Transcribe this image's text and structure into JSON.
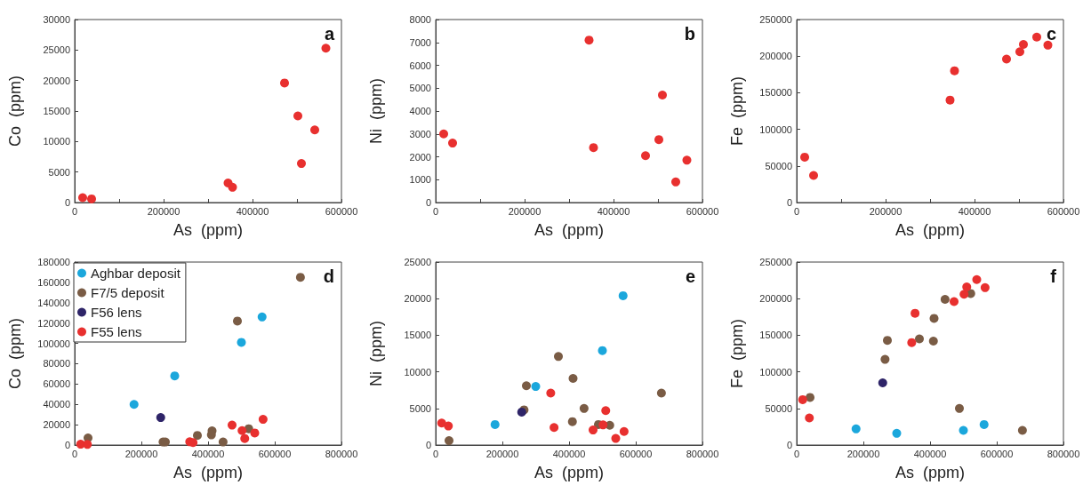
{
  "chart_data": [
    {
      "type": "scatter",
      "xlabel": "As  (ppm)",
      "ylabel": "Co  (ppm)",
      "annotations": [
        "a"
      ],
      "marker": "circle",
      "legend": false,
      "xlim": [
        0,
        600000
      ],
      "xticks": [
        0,
        {
          "value": 100000,
          "label": null
        },
        200000,
        {
          "value": 300000,
          "label": null
        },
        400000,
        {
          "value": 500000,
          "label": null
        },
        600000
      ],
      "ylim": [
        0,
        30000
      ],
      "yticks": [
        0,
        5000,
        10000,
        15000,
        20000,
        25000,
        30000
      ],
      "series": [
        {
          "color": "#e8302f",
          "x": [
            18000,
            38000,
            345000,
            355000,
            472000,
            502000,
            510000,
            540000,
            565000
          ],
          "values": [
            800,
            600,
            3200,
            2500,
            19600,
            14200,
            6400,
            11900,
            25300
          ]
        }
      ]
    },
    {
      "type": "scatter",
      "xlabel": "As  (ppm)",
      "ylabel": "Ni  (ppm)",
      "annotations": [
        "b"
      ],
      "marker": "circle",
      "legend": false,
      "xlim": [
        0,
        600000
      ],
      "xticks": [
        0,
        {
          "value": 100000,
          "label": null
        },
        200000,
        {
          "value": 300000,
          "label": null
        },
        400000,
        {
          "value": 500000,
          "label": null
        },
        600000
      ],
      "ylim": [
        0,
        8000
      ],
      "yticks": [
        0,
        1000,
        2000,
        3000,
        4000,
        5000,
        6000,
        7000,
        8000
      ],
      "series": [
        {
          "color": "#e8302f",
          "x": [
            18000,
            38000,
            345000,
            355000,
            472000,
            502000,
            510000,
            540000,
            565000
          ],
          "values": [
            3000,
            2600,
            7100,
            2400,
            2050,
            2750,
            4700,
            900,
            1850
          ]
        }
      ]
    },
    {
      "type": "scatter",
      "xlabel": "As  (ppm)",
      "ylabel": "Fe  (ppm)",
      "annotations": [
        "c"
      ],
      "marker": "circle",
      "legend": false,
      "xlim": [
        0,
        600000
      ],
      "xticks": [
        0,
        {
          "value": 100000,
          "label": null
        },
        200000,
        {
          "value": 300000,
          "label": null
        },
        400000,
        {
          "value": 500000,
          "label": null
        },
        600000
      ],
      "ylim": [
        0,
        250000
      ],
      "yticks": [
        0,
        50000,
        100000,
        150000,
        200000,
        250000
      ],
      "series": [
        {
          "color": "#e8302f",
          "x": [
            18000,
            38000,
            345000,
            355000,
            472000,
            502000,
            510000,
            540000,
            565000
          ],
          "values": [
            62000,
            37000,
            140000,
            180000,
            196000,
            206000,
            216000,
            226000,
            215000
          ]
        }
      ]
    },
    {
      "type": "scatter",
      "xlabel": "As  (ppm)",
      "ylabel": "Co  (ppm)",
      "annotations": [
        "d"
      ],
      "marker": "circle",
      "legend": "top left",
      "xlim": [
        0,
        800000
      ],
      "xticks": [
        0,
        200000,
        400000,
        600000,
        800000
      ],
      "ylim": [
        0,
        180000
      ],
      "yticks": [
        0,
        20000,
        40000,
        60000,
        80000,
        100000,
        120000,
        140000,
        160000,
        180000
      ],
      "series": [
        {
          "name": "Aghbar deposit",
          "color": "#1ba7dc",
          "x": [
            178000,
            300000,
            500000,
            562000
          ],
          "values": [
            40000,
            68000,
            101000,
            126000
          ]
        },
        {
          "name": "F7/5 deposit",
          "color": "#7a5c45",
          "x": [
            40000,
            265000,
            272000,
            368000,
            412000,
            410000,
            445000,
            488000,
            522000,
            677000
          ],
          "values": [
            7000,
            3000,
            3000,
            9500,
            14000,
            10000,
            3000,
            122000,
            16000,
            165000
          ]
        },
        {
          "name": "F56 lens",
          "color": "#2e2468",
          "x": [
            258000
          ],
          "values": [
            27000
          ]
        },
        {
          "name": "F55 lens",
          "color": "#e8302f",
          "x": [
            18000,
            38000,
            345000,
            355000,
            472000,
            502000,
            510000,
            540000,
            565000
          ],
          "values": [
            800,
            600,
            3200,
            2500,
            19600,
            14200,
            6400,
            11900,
            25300
          ]
        }
      ]
    },
    {
      "type": "scatter",
      "xlabel": "As  (ppm)",
      "ylabel": "Ni  (ppm)",
      "annotations": [
        "e"
      ],
      "marker": "circle",
      "legend": false,
      "xlim": [
        0,
        800000
      ],
      "xticks": [
        0,
        200000,
        400000,
        600000,
        800000
      ],
      "ylim": [
        0,
        25000
      ],
      "yticks": [
        0,
        5000,
        10000,
        15000,
        20000,
        25000
      ],
      "series": [
        {
          "color": "#1ba7dc",
          "x": [
            178000,
            300000,
            500000,
            562000
          ],
          "values": [
            2800,
            8000,
            12900,
            20400
          ]
        },
        {
          "color": "#7a5c45",
          "x": [
            40000,
            265000,
            272000,
            368000,
            412000,
            410000,
            445000,
            488000,
            522000,
            677000
          ],
          "values": [
            600,
            4800,
            8100,
            12100,
            9100,
            3200,
            5000,
            2800,
            2700,
            7100
          ]
        },
        {
          "color": "#2e2468",
          "x": [
            258000
          ],
          "values": [
            4500
          ]
        },
        {
          "color": "#e8302f",
          "x": [
            18000,
            38000,
            345000,
            355000,
            472000,
            502000,
            510000,
            540000,
            565000
          ],
          "values": [
            3000,
            2600,
            7100,
            2400,
            2050,
            2750,
            4700,
            900,
            1850
          ]
        }
      ]
    },
    {
      "type": "scatter",
      "xlabel": "As  (ppm)",
      "ylabel": "Fe  (ppm)",
      "annotations": [
        "f"
      ],
      "marker": "circle",
      "legend": false,
      "xlim": [
        0,
        800000
      ],
      "xticks": [
        0,
        200000,
        400000,
        600000,
        800000
      ],
      "ylim": [
        0,
        250000
      ],
      "yticks": [
        0,
        50000,
        100000,
        150000,
        200000,
        250000
      ],
      "series": [
        {
          "color": "#1ba7dc",
          "x": [
            178000,
            300000,
            500000,
            562000
          ],
          "values": [
            22000,
            16000,
            20000,
            28000
          ]
        },
        {
          "color": "#7a5c45",
          "x": [
            40000,
            265000,
            272000,
            368000,
            412000,
            410000,
            445000,
            488000,
            522000,
            677000
          ],
          "values": [
            65000,
            117000,
            143000,
            145000,
            173000,
            142000,
            199000,
            50000,
            207000,
            20000
          ]
        },
        {
          "color": "#2e2468",
          "x": [
            258000
          ],
          "values": [
            85000
          ]
        },
        {
          "color": "#e8302f",
          "x": [
            18000,
            38000,
            345000,
            355000,
            472000,
            502000,
            510000,
            540000,
            565000
          ],
          "values": [
            62000,
            37000,
            140000,
            180000,
            196000,
            206000,
            216000,
            226000,
            215000
          ]
        }
      ]
    }
  ]
}
